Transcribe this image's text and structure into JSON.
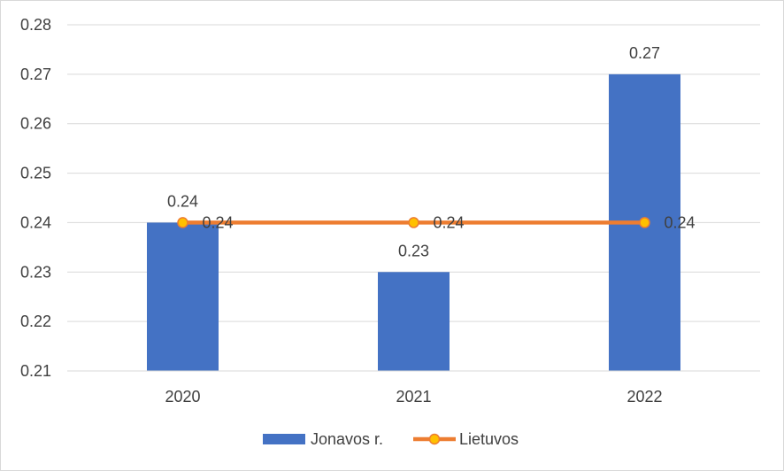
{
  "chart_data": {
    "type": "bar",
    "categories": [
      "2020",
      "2021",
      "2022"
    ],
    "series": [
      {
        "name": "Jonavos r.",
        "kind": "bar",
        "color": "#4472C4",
        "values": [
          0.24,
          0.23,
          0.27
        ],
        "labels": [
          "0.24",
          "0.23",
          "0.27"
        ]
      },
      {
        "name": "Lietuvos",
        "kind": "line",
        "color": "#ED7D31",
        "marker_fill": "#FFC000",
        "values": [
          0.24,
          0.24,
          0.24
        ],
        "labels": [
          "0.24",
          "0.24",
          "0.24"
        ]
      }
    ],
    "ylim": [
      0.21,
      0.28
    ],
    "yticks": [
      "0.21",
      "0.22",
      "0.23",
      "0.24",
      "0.25",
      "0.26",
      "0.27",
      "0.28"
    ],
    "grid": true,
    "legend_position": "bottom",
    "title": "",
    "xlabel": "",
    "ylabel": ""
  }
}
